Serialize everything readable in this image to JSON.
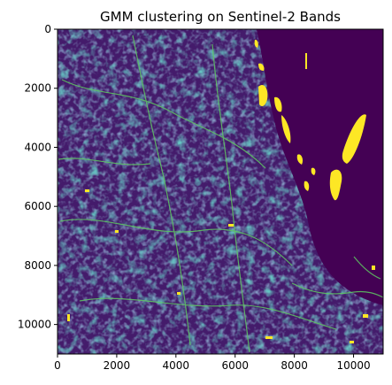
{
  "chart_data": {
    "type": "heatmap",
    "title": "GMM clustering on Sentinel-2 Bands",
    "xlabel": "",
    "ylabel": "",
    "xlim": [
      0,
      11000
    ],
    "ylim": [
      11000,
      0
    ],
    "x_ticks": [
      "0",
      "2000",
      "4000",
      "6000",
      "8000",
      "10000"
    ],
    "y_ticks": [
      "0",
      "2000",
      "4000",
      "6000",
      "8000",
      "10000"
    ],
    "x_tick_values": [
      0,
      2000,
      4000,
      6000,
      8000,
      10000
    ],
    "y_tick_values": [
      0,
      2000,
      4000,
      6000,
      8000,
      10000
    ],
    "grid": false,
    "colormap": "viridis",
    "colors": {
      "background_cluster": "#440154",
      "mid_dark_cluster": "#3b528b",
      "mid_cluster": "#21918c",
      "light_cluster": "#5ec962",
      "bright_cluster": "#fde725"
    }
  }
}
